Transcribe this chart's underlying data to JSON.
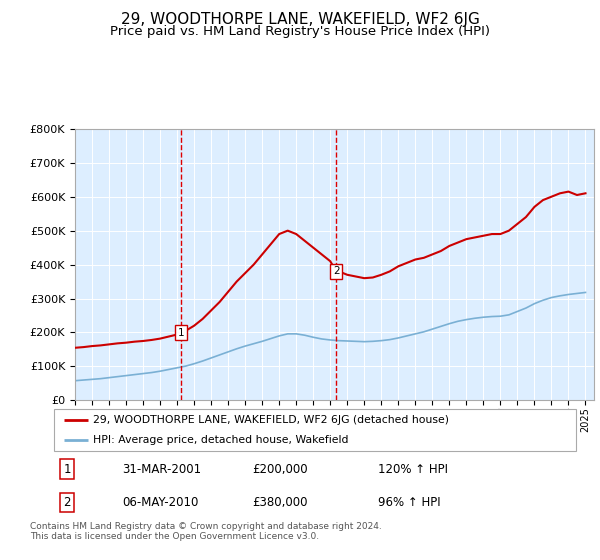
{
  "title": "29, WOODTHORPE LANE, WAKEFIELD, WF2 6JG",
  "subtitle": "Price paid vs. HM Land Registry's House Price Index (HPI)",
  "title_fontsize": 11,
  "subtitle_fontsize": 9.5,
  "background_color": "#ffffff",
  "plot_bg_color": "#ddeeff",
  "ylabel_ticks": [
    "£0",
    "£100K",
    "£200K",
    "£300K",
    "£400K",
    "£500K",
    "£600K",
    "£700K",
    "£800K"
  ],
  "ytick_values": [
    0,
    100000,
    200000,
    300000,
    400000,
    500000,
    600000,
    700000,
    800000
  ],
  "ylim": [
    0,
    800000
  ],
  "xlim_start": 1995.0,
  "xlim_end": 2025.5,
  "red_line_color": "#cc0000",
  "blue_line_color": "#7ab0d4",
  "vline_color": "#dd0000",
  "transaction1_x": 2001.25,
  "transaction1_y": 200000,
  "transaction2_x": 2010.35,
  "transaction2_y": 380000,
  "legend_label_red": "29, WOODTHORPE LANE, WAKEFIELD, WF2 6JG (detached house)",
  "legend_label_blue": "HPI: Average price, detached house, Wakefield",
  "table_row1": [
    "1",
    "31-MAR-2001",
    "£200,000",
    "120% ↑ HPI"
  ],
  "table_row2": [
    "2",
    "06-MAY-2010",
    "£380,000",
    "96% ↑ HPI"
  ],
  "footnote": "Contains HM Land Registry data © Crown copyright and database right 2024.\nThis data is licensed under the Open Government Licence v3.0.",
  "red_x": [
    1995.0,
    1995.5,
    1996.0,
    1996.5,
    1997.0,
    1997.5,
    1998.0,
    1998.5,
    1999.0,
    1999.5,
    2000.0,
    2000.5,
    2001.0,
    2001.25,
    2001.5,
    2002.0,
    2002.5,
    2003.0,
    2003.5,
    2004.0,
    2004.5,
    2005.0,
    2005.5,
    2006.0,
    2006.5,
    2007.0,
    2007.5,
    2008.0,
    2008.5,
    2009.0,
    2009.5,
    2010.0,
    2010.35,
    2010.5,
    2011.0,
    2011.5,
    2012.0,
    2012.5,
    2013.0,
    2013.5,
    2014.0,
    2014.5,
    2015.0,
    2015.5,
    2016.0,
    2016.5,
    2017.0,
    2017.5,
    2018.0,
    2018.5,
    2019.0,
    2019.5,
    2020.0,
    2020.5,
    2021.0,
    2021.5,
    2022.0,
    2022.5,
    2023.0,
    2023.5,
    2024.0,
    2024.5,
    2025.0
  ],
  "red_y": [
    155000,
    157000,
    160000,
    162000,
    165000,
    168000,
    170000,
    173000,
    175000,
    178000,
    182000,
    188000,
    194000,
    200000,
    205000,
    220000,
    240000,
    265000,
    290000,
    320000,
    350000,
    375000,
    400000,
    430000,
    460000,
    490000,
    500000,
    490000,
    470000,
    450000,
    430000,
    410000,
    380000,
    380000,
    370000,
    365000,
    360000,
    362000,
    370000,
    380000,
    395000,
    405000,
    415000,
    420000,
    430000,
    440000,
    455000,
    465000,
    475000,
    480000,
    485000,
    490000,
    490000,
    500000,
    520000,
    540000,
    570000,
    590000,
    600000,
    610000,
    615000,
    605000,
    610000
  ],
  "blue_x": [
    1995.0,
    1995.5,
    1996.0,
    1996.5,
    1997.0,
    1997.5,
    1998.0,
    1998.5,
    1999.0,
    1999.5,
    2000.0,
    2000.5,
    2001.0,
    2001.5,
    2002.0,
    2002.5,
    2003.0,
    2003.5,
    2004.0,
    2004.5,
    2005.0,
    2005.5,
    2006.0,
    2006.5,
    2007.0,
    2007.5,
    2008.0,
    2008.5,
    2009.0,
    2009.5,
    2010.0,
    2010.5,
    2011.0,
    2011.5,
    2012.0,
    2012.5,
    2013.0,
    2013.5,
    2014.0,
    2014.5,
    2015.0,
    2015.5,
    2016.0,
    2016.5,
    2017.0,
    2017.5,
    2018.0,
    2018.5,
    2019.0,
    2019.5,
    2020.0,
    2020.5,
    2021.0,
    2021.5,
    2022.0,
    2022.5,
    2023.0,
    2023.5,
    2024.0,
    2024.5,
    2025.0
  ],
  "blue_y": [
    58000,
    60000,
    62000,
    64000,
    67000,
    70000,
    73000,
    76000,
    79000,
    82000,
    86000,
    91000,
    96000,
    101000,
    108000,
    116000,
    125000,
    134000,
    143000,
    152000,
    160000,
    167000,
    174000,
    182000,
    190000,
    196000,
    196000,
    192000,
    186000,
    181000,
    178000,
    176000,
    175000,
    174000,
    173000,
    174000,
    176000,
    179000,
    184000,
    190000,
    196000,
    202000,
    210000,
    218000,
    226000,
    233000,
    238000,
    242000,
    245000,
    247000,
    248000,
    252000,
    262000,
    272000,
    285000,
    295000,
    303000,
    308000,
    312000,
    315000,
    318000
  ]
}
